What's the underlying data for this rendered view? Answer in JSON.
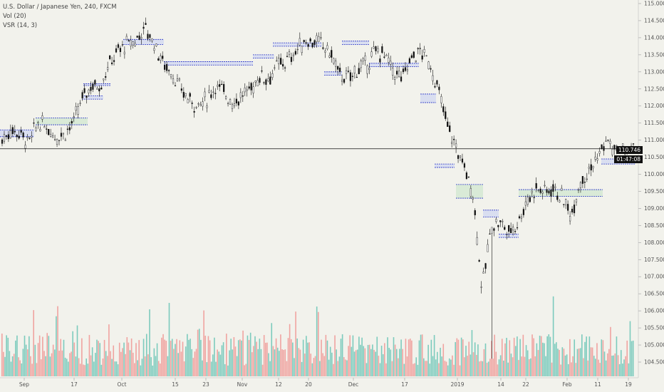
{
  "header": {
    "title": "U.S. Dollar / Japanese Yen, 240, FXCM",
    "indicator_vol": "Vol (20)",
    "indicator_vsr": "VSR (14, 3)"
  },
  "price_tags": {
    "last_price": "110.746",
    "countdown": "01:47:08"
  },
  "colors": {
    "background": "#f2f2ec",
    "candle": "#111111",
    "vol_up": "#7ccbbd",
    "vol_down": "#f0a3a0",
    "vsr_band_line": "#2a36c8",
    "vsr_band_fill_blue": "#cfd6f2",
    "vsr_band_fill_green": "#cfe7cf",
    "price_line": "#111111"
  },
  "chart_data": {
    "type": "candlestick",
    "symbol": "USDJPY",
    "timeframe": "240",
    "y_axis": {
      "min": 104.5,
      "max": 115.0,
      "ticks": [
        "115.000",
        "114.500",
        "114.000",
        "113.500",
        "113.000",
        "112.500",
        "112.000",
        "111.500",
        "111.000",
        "110.500",
        "110.000",
        "109.500",
        "109.000",
        "108.500",
        "108.000",
        "107.500",
        "107.000",
        "106.500",
        "106.000",
        "105.500",
        "105.000",
        "104.500"
      ]
    },
    "x_axis": {
      "ticks": [
        "Sep",
        "17",
        "Oct",
        "15",
        "23",
        "Nov",
        "12",
        "20",
        "Dec",
        "17",
        "2019",
        "14",
        "22",
        "Feb",
        "11",
        "19"
      ]
    },
    "price_path": [
      [
        "Sep",
        111.0
      ],
      [
        "",
        111.3
      ],
      [
        "",
        111.2
      ],
      [
        "",
        110.9
      ],
      [
        "",
        111.5
      ],
      [
        "",
        111.4
      ],
      [
        "",
        111.1
      ],
      [
        "",
        111.2
      ],
      [
        "17",
        111.5
      ],
      [
        "",
        112.2
      ],
      [
        "",
        112.6
      ],
      [
        "",
        112.6
      ],
      [
        "",
        113.2
      ],
      [
        "",
        113.6
      ],
      [
        "",
        113.8
      ],
      [
        "Oct",
        113.9
      ],
      [
        "",
        114.3
      ],
      [
        "",
        113.9
      ],
      [
        "",
        113.3
      ],
      [
        "",
        113.0
      ],
      [
        "",
        112.5
      ],
      [
        "",
        112.2
      ],
      [
        "15",
        112.0
      ],
      [
        "",
        112.2
      ],
      [
        "",
        112.6
      ],
      [
        "",
        112.4
      ],
      [
        "23",
        112.1
      ],
      [
        "",
        112.3
      ],
      [
        "",
        112.5
      ],
      [
        "",
        112.9
      ],
      [
        "",
        112.8
      ],
      [
        "",
        113.2
      ],
      [
        "Nov",
        113.3
      ],
      [
        "",
        113.6
      ],
      [
        "",
        113.9
      ],
      [
        "",
        113.9
      ],
      [
        "12",
        113.8
      ],
      [
        "",
        113.5
      ],
      [
        "",
        112.9
      ],
      [
        "20",
        112.8
      ],
      [
        "",
        113.1
      ],
      [
        "",
        113.2
      ],
      [
        "",
        113.6
      ],
      [
        "Dec",
        113.5
      ],
      [
        "",
        113.0
      ],
      [
        "",
        112.8
      ],
      [
        "",
        113.4
      ],
      [
        "",
        113.6
      ],
      [
        "17",
        113.3
      ],
      [
        "",
        112.5
      ],
      [
        "",
        111.5
      ],
      [
        "",
        110.8
      ],
      [
        "",
        110.2
      ],
      [
        "2019",
        109.4
      ],
      [
        "",
        106.6
      ],
      [
        "",
        108.5
      ],
      [
        "",
        108.6
      ],
      [
        "",
        108.3
      ],
      [
        "14",
        108.6
      ],
      [
        "",
        109.2
      ],
      [
        "22",
        109.6
      ],
      [
        "",
        109.5
      ],
      [
        "",
        109.6
      ],
      [
        "",
        109.3
      ],
      [
        "Feb",
        108.8
      ],
      [
        "",
        109.8
      ],
      [
        "",
        110.1
      ],
      [
        "11",
        110.5
      ],
      [
        "",
        111.0
      ],
      [
        "",
        110.6
      ],
      [
        "19",
        110.7
      ],
      [
        "",
        110.75
      ]
    ],
    "last_price": 110.746,
    "volume_range": [
      0,
      1
    ],
    "vsr_bands": [
      {
        "x": [
          "Sep",
          ""
        ],
        "upper": 111.3,
        "lower": 111.1
      },
      {
        "x": [
          "",
          ""
        ],
        "upper": 111.65,
        "lower": 111.45
      },
      {
        "x": [
          "",
          ""
        ],
        "upper": 112.65,
        "lower": 112.6
      },
      {
        "x": [
          "",
          ""
        ],
        "upper": 112.3,
        "lower": 112.2
      },
      {
        "x": [
          "Oct",
          ""
        ],
        "upper": 113.95,
        "lower": 113.8
      },
      {
        "x": [
          "15",
          "Nov"
        ],
        "upper": 113.3,
        "lower": 113.2
      },
      {
        "x": [
          "",
          ""
        ],
        "upper": 113.5,
        "lower": 113.4
      },
      {
        "x": [
          "12",
          ""
        ],
        "upper": 113.85,
        "lower": 113.75
      },
      {
        "x": [
          "20",
          ""
        ],
        "upper": 113.0,
        "lower": 112.9
      },
      {
        "x": [
          "Dec",
          ""
        ],
        "upper": 113.9,
        "lower": 113.8
      },
      {
        "x": [
          "",
          ""
        ],
        "upper": 113.25,
        "lower": 113.15
      },
      {
        "x": [
          "17",
          ""
        ],
        "upper": 112.35,
        "lower": 112.1
      },
      {
        "x": [
          "",
          ""
        ],
        "upper": 110.3,
        "lower": 110.2
      },
      {
        "x": [
          "2019",
          ""
        ],
        "upper": 109.7,
        "lower": 109.3
      },
      {
        "x": [
          "",
          ""
        ],
        "upper": 108.95,
        "lower": 108.75
      },
      {
        "x": [
          "14",
          ""
        ],
        "upper": 108.25,
        "lower": 108.15
      },
      {
        "x": [
          "22",
          "11"
        ],
        "upper": 109.55,
        "lower": 109.35
      },
      {
        "x": [
          "11",
          "19"
        ],
        "upper": 110.45,
        "lower": 110.3
      }
    ]
  }
}
